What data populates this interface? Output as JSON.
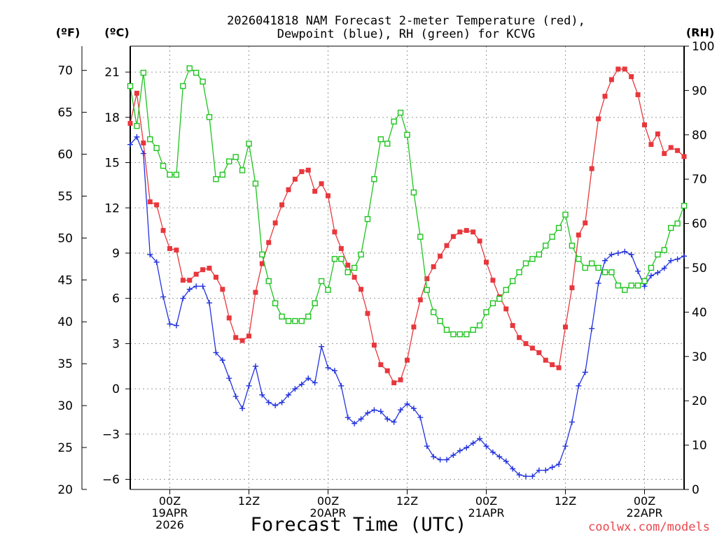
{
  "chart_data": {
    "type": "line",
    "title_line1": "2026041818 NAM Forecast 2-meter Temperature (red),",
    "title_line2": "Dewpoint (blue), RH (green) for KCVG",
    "xlabel": "Forecast Time (UTC)",
    "credit": "coolwx.com/models",
    "credit_color": "#e8474e",
    "left_outer_axis": {
      "label": "(ºF)",
      "ticks": [
        20,
        25,
        30,
        35,
        40,
        45,
        50,
        55,
        60,
        65,
        70
      ]
    },
    "left_axis": {
      "label": "(ºC)",
      "ticks": [
        -6,
        -3,
        0,
        3,
        6,
        9,
        12,
        15,
        18,
        21
      ],
      "ylim": [
        -6.67,
        22.72
      ]
    },
    "right_axis": {
      "label": "(RH)",
      "ticks": [
        0,
        10,
        20,
        30,
        40,
        50,
        60,
        70,
        80,
        90,
        100
      ],
      "ylim": [
        0,
        100
      ]
    },
    "x_ticks": [
      {
        "hour": 6,
        "lines": [
          "00Z",
          "19APR",
          "2026"
        ]
      },
      {
        "hour": 18,
        "lines": [
          "12Z"
        ]
      },
      {
        "hour": 30,
        "lines": [
          "00Z",
          "20APR"
        ]
      },
      {
        "hour": 42,
        "lines": [
          "12Z"
        ]
      },
      {
        "hour": 54,
        "lines": [
          "00Z",
          "21APR"
        ]
      },
      {
        "hour": 66,
        "lines": [
          "12Z"
        ]
      },
      {
        "hour": 78,
        "lines": [
          "00Z",
          "22APR"
        ]
      }
    ],
    "xlim": [
      0,
      84
    ],
    "forecast_hours": [
      0,
      1,
      2,
      3,
      4,
      5,
      6,
      7,
      8,
      9,
      10,
      11,
      12,
      13,
      14,
      15,
      16,
      17,
      18,
      19,
      20,
      21,
      22,
      23,
      24,
      25,
      26,
      27,
      28,
      29,
      30,
      31,
      32,
      33,
      34,
      35,
      36,
      37,
      38,
      39,
      40,
      41,
      42,
      43,
      44,
      45,
      46,
      47,
      48,
      49,
      50,
      51,
      52,
      53,
      54,
      55,
      56,
      57,
      58,
      59,
      60,
      61,
      62,
      63,
      64,
      65,
      66,
      67,
      68,
      69,
      70,
      71,
      72,
      73,
      74,
      75,
      76,
      77,
      78,
      79,
      80,
      81,
      82,
      83,
      84
    ],
    "series": [
      {
        "name": "2-meter Temperature",
        "unit": "C",
        "color": "#e8373c",
        "values": [
          17.6,
          19.6,
          16.3,
          12.4,
          12.2,
          10.5,
          9.3,
          9.2,
          7.2,
          7.2,
          7.6,
          7.9,
          8.0,
          7.4,
          6.6,
          4.7,
          3.4,
          3.2,
          3.5,
          6.4,
          8.3,
          9.7,
          11.0,
          12.2,
          13.2,
          13.9,
          14.4,
          14.5,
          13.1,
          13.6,
          12.8,
          10.4,
          9.3,
          8.2,
          7.4,
          6.6,
          5.0,
          2.9,
          1.6,
          1.2,
          0.4,
          0.6,
          1.9,
          4.1,
          5.9,
          7.3,
          8.1,
          8.8,
          9.5,
          10.1,
          10.4,
          10.5,
          10.4,
          9.8,
          8.4,
          7.2,
          6.1,
          5.3,
          4.2,
          3.4,
          3.0,
          2.7,
          2.4,
          1.9,
          1.6,
          1.4,
          4.1,
          6.7,
          10.2,
          11.0,
          14.6,
          17.9,
          19.4,
          20.5,
          21.2,
          21.2,
          20.7,
          19.5,
          17.5,
          16.2,
          16.9,
          15.6,
          16.0,
          15.8,
          15.4
        ]
      },
      {
        "name": "Dewpoint",
        "unit": "C",
        "color": "#2233dd",
        "values": [
          16.2,
          16.7,
          15.6,
          8.9,
          8.4,
          6.1,
          4.3,
          4.2,
          6.0,
          6.6,
          6.8,
          6.8,
          5.7,
          2.4,
          1.9,
          0.7,
          -0.5,
          -1.3,
          0.2,
          1.5,
          -0.4,
          -0.9,
          -1.1,
          -0.9,
          -0.4,
          0.0,
          0.3,
          0.7,
          0.4,
          2.8,
          1.4,
          1.2,
          0.2,
          -1.9,
          -2.3,
          -2.0,
          -1.6,
          -1.4,
          -1.5,
          -2.0,
          -2.2,
          -1.4,
          -1.0,
          -1.3,
          -1.9,
          -3.8,
          -4.5,
          -4.7,
          -4.7,
          -4.4,
          -4.1,
          -3.9,
          -3.6,
          -3.3,
          -3.8,
          -4.2,
          -4.5,
          -4.8,
          -5.3,
          -5.7,
          -5.8,
          -5.8,
          -5.4,
          -5.4,
          -5.2,
          -5.0,
          -3.8,
          -2.2,
          0.2,
          1.1,
          4.0,
          7.0,
          8.5,
          8.9,
          9.0,
          9.1,
          8.9,
          7.8,
          6.8,
          7.5,
          7.7,
          8.0,
          8.5,
          8.6,
          8.8
        ]
      },
      {
        "name": "RH",
        "unit": "%",
        "color": "#1ec41e",
        "values": [
          91,
          82,
          94,
          79,
          77,
          73,
          71,
          71,
          91,
          95,
          94,
          92,
          84,
          70,
          71,
          74,
          75,
          72,
          78,
          69,
          53,
          47,
          42,
          39,
          38,
          38,
          38,
          39,
          42,
          47,
          45,
          52,
          52,
          49,
          50,
          53,
          61,
          70,
          79,
          78,
          83,
          85,
          80,
          67,
          57,
          45,
          40,
          38,
          36,
          35,
          35,
          35,
          36,
          37,
          40,
          42,
          43,
          45,
          47,
          49,
          51,
          52,
          53,
          55,
          57,
          59,
          62,
          55,
          52,
          50,
          51,
          50,
          49,
          49,
          46,
          45,
          46,
          46,
          47,
          50,
          53,
          54,
          59,
          60,
          64
        ]
      }
    ]
  }
}
